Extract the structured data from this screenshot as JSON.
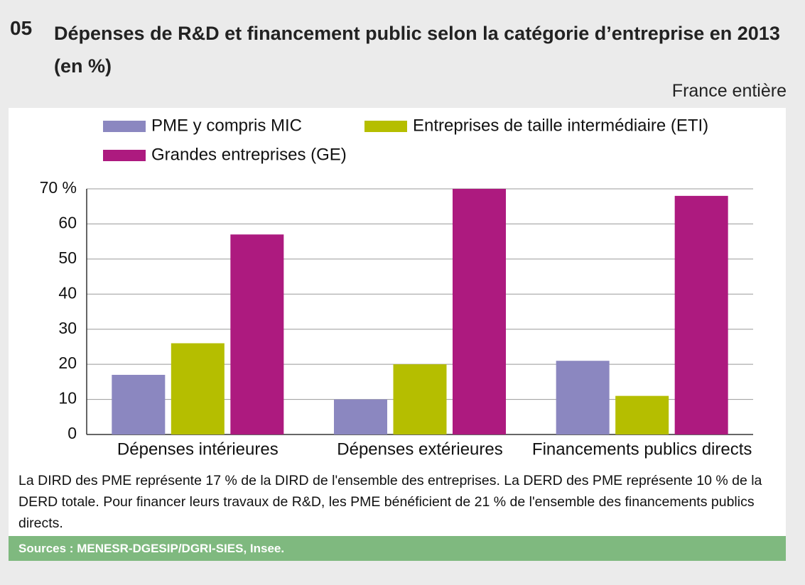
{
  "chart_data": {
    "type": "bar",
    "number": "05",
    "title": "Dépenses de R&D et financement public selon la catégorie d’entreprise en 2013 (en %)",
    "subtitle": "France entière",
    "categories": [
      "Dépenses intérieures",
      "Dépenses extérieures",
      "Financements publics directs"
    ],
    "series": [
      {
        "name": "PME y compris MIC",
        "color": "#8b87c0",
        "values": [
          17,
          10,
          21
        ]
      },
      {
        "name": "Entreprises de taille intermédiaire (ETI)",
        "color": "#b5be00",
        "values": [
          26,
          20,
          11
        ]
      },
      {
        "name": "Grandes entreprises (GE)",
        "color": "#ad1a7f",
        "values": [
          57,
          70,
          68
        ]
      }
    ],
    "ylim": [
      0,
      70
    ],
    "yticks": [
      0,
      10,
      20,
      30,
      40,
      50,
      60,
      {
        "value": 70,
        "label": "70 %"
      }
    ],
    "grid": true,
    "note": "La DIRD des PME représente 17 % de la DIRD de l'ensemble des entreprises. La DERD des PME représente 10 % de la DERD totale. Pour financer leurs travaux de R&D, les PME bénéficient de 21 % de l'ensemble des financements publics directs.",
    "source": "Sources : MENESR-DGESIP/DGRI-SIES, Insee."
  }
}
